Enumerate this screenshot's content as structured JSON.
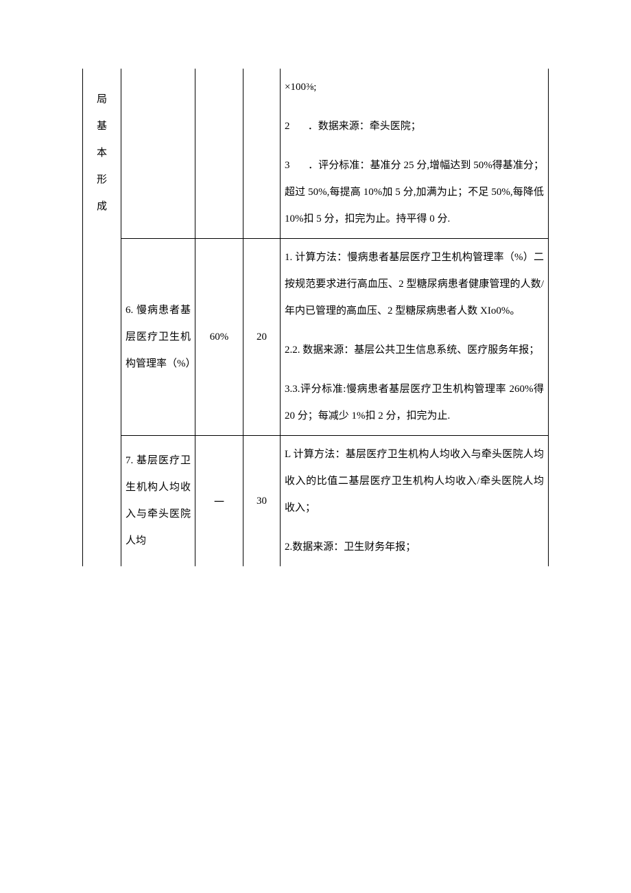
{
  "table": {
    "columns": {
      "a_width": 56,
      "b_width": 108,
      "c_width": 70,
      "d_width": 54
    },
    "row1": {
      "colA": "局基本形成",
      "colE_line1": "×100⅜;",
      "colE_line2_num": "2",
      "colE_line2_text": "．数据来源：牵头医院；",
      "colE_line3_num": "3",
      "colE_line3_text": "．评分标准：基准分 25 分,增幅达到 50%得基准分；超过 50%,每提高 10%加 5 分,加满为止；不足 50%,每降低 10%扣 5 分，扣完为止。持平得 0 分."
    },
    "row2": {
      "colB": "6. 慢病患者基层医疗卫生机构管理率（%）",
      "colC": "60%",
      "colD": "20",
      "colE_p1": "1. 计算方法：慢病患者基层医疗卫生机构管理率（%）二按规范要求进行高血压、2 型糖尿病患者健康管理的人数/年内已管理的高血压、2 型糖尿病患者人数 XIo0%。",
      "colE_p2": "2.2. 数据来源：基层公共卫生信息系统、医疗服务年报；",
      "colE_p3": "3.3.评分标准:慢病患者基层医疗卫生机构管理率 260%得 20 分；每减少 1%扣 2 分，扣完为止."
    },
    "row3": {
      "colB": "7. 基层医疗卫生机构人均收入与牵头医院人均",
      "colC": "一",
      "colD": "30",
      "colE_p1": "L 计算方法：基层医疗卫生机构人均收入与牵头医院人均收入的比值二基层医疗卫生机构人均收入/牵头医院人均收入；",
      "colE_p2": "2.数据来源：卫生财务年报；"
    }
  }
}
